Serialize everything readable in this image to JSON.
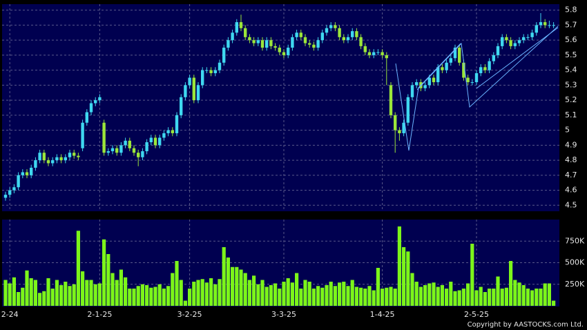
{
  "chart_data": [
    {
      "type": "candlestick",
      "categories": [
        null,
        "2-24",
        null,
        null,
        null,
        null,
        null,
        null,
        null,
        null,
        null,
        null,
        null,
        null,
        null,
        null,
        null,
        null,
        null,
        null,
        null,
        null,
        "2-1-25",
        null,
        null,
        null,
        null,
        null,
        null,
        null,
        null,
        null,
        null,
        null,
        null,
        null,
        null,
        null,
        null,
        null,
        null,
        null,
        null,
        "3-2-25",
        null,
        null,
        null,
        null,
        null,
        null,
        null,
        null,
        null,
        null,
        null,
        null,
        null,
        null,
        null,
        null,
        null,
        null,
        null,
        null,
        null,
        "3-3-25",
        null,
        null,
        null,
        null,
        null,
        null,
        null,
        null,
        null,
        null,
        null,
        null,
        null,
        null,
        null,
        null,
        null,
        null,
        null,
        null,
        null,
        null,
        "1-4-25",
        null,
        null,
        null,
        null,
        null,
        null,
        null,
        null,
        null,
        null,
        null,
        null,
        null,
        null,
        null,
        null,
        null,
        null,
        null,
        null,
        null,
        "2-5-25",
        null,
        null,
        null,
        null,
        null,
        null,
        null,
        null,
        null,
        null,
        null,
        null,
        null,
        null,
        null,
        null,
        null,
        null
      ],
      "open": [
        4.55,
        4.57,
        4.6,
        4.62,
        4.7,
        4.72,
        4.7,
        4.75,
        4.8,
        4.85,
        4.8,
        4.78,
        4.8,
        4.82,
        4.8,
        4.82,
        4.85,
        4.83,
        4.88,
        5.05,
        5.12,
        5.18,
        5.2,
        5.05,
        4.85,
        4.86,
        4.88,
        4.85,
        4.9,
        4.93,
        4.88,
        4.85,
        4.82,
        4.86,
        4.92,
        4.95,
        4.9,
        4.95,
        4.98,
        5.0,
        4.98,
        5.1,
        5.22,
        5.3,
        5.35,
        5.2,
        5.3,
        5.4,
        5.4,
        5.38,
        5.4,
        5.45,
        5.55,
        5.6,
        5.65,
        5.72,
        5.68,
        5.62,
        5.6,
        5.58,
        5.6,
        5.55,
        5.6,
        5.56,
        5.55,
        5.52,
        5.5,
        5.55,
        5.62,
        5.65,
        5.62,
        5.58,
        5.57,
        5.55,
        5.6,
        5.65,
        5.68,
        5.7,
        5.68,
        5.62,
        5.6,
        5.62,
        5.66,
        5.62,
        5.56,
        5.52,
        5.5,
        5.52,
        5.52,
        5.5,
        5.3,
        5.1,
        5.0,
        4.98,
        5.05,
        5.22,
        5.3,
        5.32,
        5.28,
        5.3,
        5.35,
        5.32,
        5.42,
        5.4,
        5.45,
        5.48,
        5.55,
        5.45,
        5.35,
        5.32,
        5.32,
        5.38,
        5.42,
        5.4,
        5.46,
        5.5,
        5.56,
        5.62,
        5.6,
        5.56,
        5.58,
        5.6,
        5.62,
        5.62,
        5.65,
        5.7,
        5.72,
        5.7,
        5.7
      ],
      "high": [
        4.59,
        4.62,
        4.64,
        4.72,
        4.74,
        4.74,
        4.77,
        4.82,
        4.87,
        4.87,
        4.82,
        4.82,
        4.84,
        4.84,
        4.84,
        4.87,
        4.87,
        4.85,
        5.07,
        5.14,
        5.2,
        5.22,
        5.24,
        5.07,
        4.88,
        4.9,
        4.9,
        4.92,
        4.95,
        4.95,
        4.9,
        4.87,
        4.88,
        4.94,
        4.97,
        4.97,
        4.97,
        5.0,
        5.02,
        5.02,
        5.12,
        5.24,
        5.32,
        5.37,
        5.37,
        5.32,
        5.42,
        5.42,
        5.42,
        5.42,
        5.47,
        5.57,
        5.62,
        5.67,
        5.74,
        5.77,
        5.7,
        5.64,
        5.62,
        5.62,
        5.62,
        5.62,
        5.62,
        5.58,
        5.57,
        5.54,
        5.57,
        5.64,
        5.67,
        5.67,
        5.64,
        5.6,
        5.59,
        5.62,
        5.67,
        5.7,
        5.72,
        5.72,
        5.7,
        5.64,
        5.64,
        5.68,
        5.68,
        5.64,
        5.58,
        5.54,
        5.54,
        5.54,
        5.54,
        5.52,
        5.32,
        5.12,
        5.02,
        5.07,
        5.24,
        5.32,
        5.34,
        5.34,
        5.32,
        5.37,
        5.37,
        5.44,
        5.44,
        5.47,
        5.5,
        5.57,
        5.57,
        5.47,
        5.37,
        5.34,
        5.4,
        5.44,
        5.44,
        5.48,
        5.52,
        5.58,
        5.64,
        5.64,
        5.62,
        5.6,
        5.62,
        5.64,
        5.64,
        5.67,
        5.72,
        5.78,
        5.74,
        5.73,
        5.72
      ],
      "low": [
        4.53,
        4.55,
        4.58,
        4.6,
        4.68,
        4.68,
        4.68,
        4.73,
        4.78,
        4.78,
        4.76,
        4.76,
        4.78,
        4.78,
        4.78,
        4.8,
        4.81,
        4.8,
        4.86,
        5.03,
        5.1,
        5.16,
        5.18,
        4.83,
        4.83,
        4.84,
        4.83,
        4.83,
        4.88,
        4.86,
        4.83,
        4.76,
        4.8,
        4.84,
        4.9,
        4.88,
        4.88,
        4.93,
        4.96,
        4.96,
        4.96,
        5.08,
        5.2,
        5.28,
        5.18,
        5.18,
        5.28,
        5.38,
        5.36,
        5.36,
        5.38,
        5.43,
        5.53,
        5.58,
        5.63,
        5.66,
        5.6,
        5.58,
        5.56,
        5.56,
        5.53,
        5.53,
        5.54,
        5.53,
        5.5,
        5.48,
        5.48,
        5.53,
        5.6,
        5.6,
        5.56,
        5.55,
        5.53,
        5.53,
        5.58,
        5.63,
        5.66,
        5.66,
        5.6,
        5.58,
        5.58,
        5.6,
        5.6,
        5.54,
        5.5,
        5.48,
        5.48,
        5.5,
        5.48,
        5.3,
        5.08,
        4.85,
        4.93,
        4.96,
        5.03,
        5.2,
        5.28,
        5.26,
        5.26,
        5.28,
        5.3,
        5.3,
        5.38,
        5.38,
        5.43,
        5.46,
        5.43,
        5.33,
        5.3,
        5.3,
        5.3,
        5.36,
        5.38,
        5.38,
        5.44,
        5.48,
        5.54,
        5.58,
        5.54,
        5.54,
        5.56,
        5.58,
        5.6,
        5.6,
        5.63,
        5.68,
        5.68,
        5.68,
        5.68
      ],
      "close": [
        4.57,
        4.6,
        4.62,
        4.7,
        4.72,
        4.7,
        4.75,
        4.8,
        4.85,
        4.8,
        4.78,
        4.8,
        4.82,
        4.8,
        4.82,
        4.85,
        4.83,
        4.82,
        5.05,
        5.12,
        5.18,
        5.2,
        5.22,
        4.85,
        4.86,
        4.88,
        4.85,
        4.9,
        4.93,
        4.88,
        4.85,
        4.82,
        4.86,
        4.92,
        4.95,
        4.9,
        4.95,
        4.98,
        5.0,
        4.98,
        5.1,
        5.22,
        5.3,
        5.35,
        5.2,
        5.3,
        5.4,
        5.4,
        5.38,
        5.4,
        5.45,
        5.55,
        5.6,
        5.65,
        5.72,
        5.68,
        5.62,
        5.6,
        5.58,
        5.6,
        5.55,
        5.6,
        5.56,
        5.55,
        5.52,
        5.5,
        5.55,
        5.62,
        5.65,
        5.62,
        5.58,
        5.57,
        5.55,
        5.6,
        5.65,
        5.68,
        5.7,
        5.68,
        5.62,
        5.6,
        5.62,
        5.66,
        5.62,
        5.56,
        5.52,
        5.5,
        5.52,
        5.52,
        5.5,
        5.48,
        5.1,
        5.0,
        4.98,
        5.05,
        5.22,
        5.3,
        5.32,
        5.28,
        5.3,
        5.35,
        5.32,
        5.42,
        5.4,
        5.45,
        5.48,
        5.55,
        5.45,
        5.35,
        5.32,
        5.32,
        5.38,
        5.42,
        5.4,
        5.46,
        5.5,
        5.56,
        5.62,
        5.6,
        5.56,
        5.58,
        5.6,
        5.62,
        5.62,
        5.65,
        5.7,
        5.72,
        5.7,
        5.7,
        5.7
      ],
      "up_color": "#3fd8f0",
      "down_color": "#9be63a",
      "ylim": [
        4.46,
        5.84
      ],
      "yticks": [
        4.5,
        4.6,
        4.7,
        4.8,
        4.9,
        5,
        5.1,
        5.2,
        5.3,
        5.4,
        5.5,
        5.6,
        5.7,
        5.8
      ],
      "grid": true
    },
    {
      "type": "bar",
      "values": [
        300000,
        260000,
        330000,
        160000,
        210000,
        410000,
        320000,
        300000,
        150000,
        170000,
        320000,
        200000,
        300000,
        240000,
        280000,
        230000,
        250000,
        870000,
        400000,
        300000,
        300000,
        250000,
        260000,
        770000,
        600000,
        380000,
        300000,
        420000,
        330000,
        200000,
        200000,
        230000,
        250000,
        240000,
        210000,
        220000,
        250000,
        200000,
        230000,
        380000,
        520000,
        300000,
        60000,
        200000,
        280000,
        300000,
        310000,
        270000,
        320000,
        250000,
        310000,
        680000,
        560000,
        450000,
        450000,
        420000,
        380000,
        300000,
        350000,
        250000,
        300000,
        220000,
        240000,
        260000,
        200000,
        280000,
        320000,
        270000,
        380000,
        200000,
        300000,
        280000,
        200000,
        230000,
        210000,
        240000,
        280000,
        230000,
        270000,
        280000,
        230000,
        300000,
        220000,
        210000,
        200000,
        230000,
        180000,
        440000,
        200000,
        210000,
        220000,
        200000,
        920000,
        680000,
        630000,
        380000,
        280000,
        220000,
        240000,
        260000,
        270000,
        220000,
        240000,
        200000,
        280000,
        170000,
        180000,
        200000,
        260000,
        720000,
        180000,
        220000,
        160000,
        200000,
        200000,
        340000,
        200000,
        210000,
        520000,
        300000,
        270000,
        240000,
        200000,
        180000,
        200000,
        200000,
        260000,
        260000,
        60000
      ],
      "color": "#7cf51a",
      "ylim": [
        0,
        1000000
      ],
      "yticks": [
        {
          "value": 250000,
          "label": "250K"
        },
        {
          "value": 500000,
          "label": "500K"
        },
        {
          "value": 750000,
          "label": "750K"
        }
      ],
      "grid": true
    }
  ],
  "footer": "Copyright by AASTOCKS.com Ltd."
}
